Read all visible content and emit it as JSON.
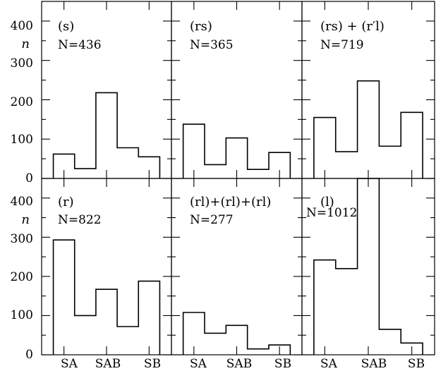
{
  "chart_data": {
    "type": "bar",
    "layout": "3x2 grid of histograms, shared axes",
    "categories": [
      "SA",
      "",
      "SAB",
      "",
      "SB"
    ],
    "ylim": [
      0,
      450
    ],
    "yticks": [
      "0",
      "100",
      "200",
      "300",
      "400"
    ],
    "ylabel": "n",
    "xticks": [
      "SA",
      "SAB",
      "SB"
    ],
    "panels": [
      {
        "label": "(s)",
        "n_text": "N=436",
        "values": [
          62,
          25,
          218,
          78,
          55
        ]
      },
      {
        "label": "(rs)",
        "n_text": "N=365",
        "values": [
          138,
          35,
          103,
          23,
          66
        ]
      },
      {
        "label": "(rs) + (r′l)",
        "n_text": "N=719",
        "values": [
          155,
          68,
          248,
          82,
          168
        ]
      },
      {
        "label": "(r)",
        "n_text": "N=822",
        "values": [
          293,
          100,
          167,
          72,
          188
        ]
      },
      {
        "label": "(rl)+(rl)+(rl)",
        "n_text": "N=277",
        "values": [
          108,
          55,
          75,
          15,
          25
        ]
      },
      {
        "label": "(l)",
        "n_text": "N=1012",
        "values": [
          242,
          220,
          450,
          65,
          30
        ]
      }
    ]
  }
}
